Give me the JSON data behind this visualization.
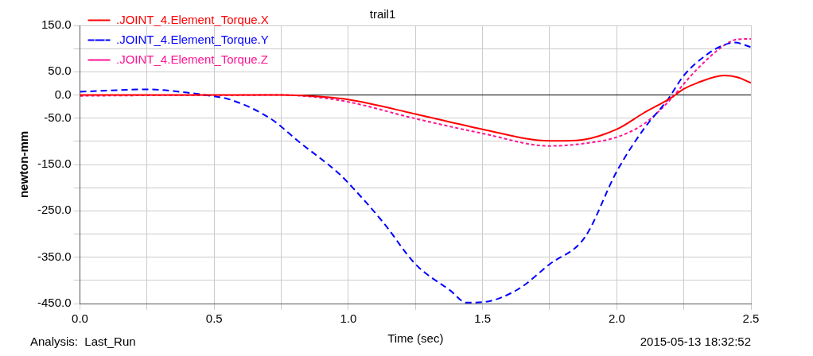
{
  "chart_data": {
    "type": "line",
    "title": "trail1",
    "xlabel": "Time (sec)",
    "ylabel": "newton-mm",
    "annotations": [
      "Analysis:  Last_Run",
      "2015-05-13 18:32:52"
    ],
    "xlim": [
      0,
      2.5
    ],
    "xticks": [
      {
        "value": 0,
        "label": "0.0"
      },
      {
        "value": 0.25,
        "label": null
      },
      {
        "value": 0.5,
        "label": "0.5"
      },
      {
        "value": 0.75,
        "label": null
      },
      {
        "value": 1,
        "label": "1.0"
      },
      {
        "value": 1.25,
        "label": null
      },
      {
        "value": 1.5,
        "label": "1.5"
      },
      {
        "value": 1.75,
        "label": null
      },
      {
        "value": 2,
        "label": "2.0"
      },
      {
        "value": 2.25,
        "label": null
      },
      {
        "value": 2.5,
        "label": "2.5"
      }
    ],
    "ylim": [
      -450,
      150
    ],
    "yticks": [
      {
        "value": -450,
        "label": "-450.0"
      },
      {
        "value": -400,
        "label": null
      },
      {
        "value": -350,
        "label": "-350.0"
      },
      {
        "value": -300,
        "label": null
      },
      {
        "value": -250,
        "label": "-250.0"
      },
      {
        "value": -200,
        "label": null
      },
      {
        "value": -150,
        "label": "-150.0"
      },
      {
        "value": -100,
        "label": null
      },
      {
        "value": -50,
        "label": "-50.0"
      },
      {
        "value": 0,
        "label": "0.0"
      },
      {
        "value": 50,
        "label": "50.0"
      },
      {
        "value": 100,
        "label": null
      },
      {
        "value": 150,
        "label": "150.0"
      }
    ],
    "grid": true,
    "legend": "top left",
    "marker": "none",
    "ref_lines": [
      {
        "axis": "y",
        "value": 0,
        "color": "#000000"
      }
    ],
    "series": [
      {
        "name": ".JOINT_4.Element_Torque.X",
        "color": "#ff0000",
        "line_style": "solid",
        "x": [
          0,
          0.25,
          0.5,
          0.75,
          0.9,
          1.0,
          1.25,
          1.5,
          1.75,
          1.85,
          2.0,
          2.1,
          2.2,
          2.25,
          2.3,
          2.4,
          2.45,
          2.5
        ],
        "values": [
          0,
          0,
          0,
          0,
          -4,
          -10,
          -41,
          -74,
          -99,
          -98,
          -74,
          -39,
          -7,
          13,
          26,
          42,
          38,
          26
        ]
      },
      {
        "name": ".JOINT_4.Element_Torque.Y",
        "color": "#0000ff",
        "line_style": "dashed",
        "x": [
          0,
          0.25,
          0.4,
          0.5,
          0.56,
          0.71,
          0.82,
          0.96,
          1.0,
          1.13,
          1.25,
          1.38,
          1.44,
          1.5,
          1.63,
          1.75,
          1.88,
          2.0,
          2.1,
          2.19,
          2.25,
          2.34,
          2.4,
          2.44,
          2.5
        ],
        "values": [
          7,
          12,
          5,
          -3,
          -10,
          -51,
          -103,
          -167,
          -190,
          -275,
          -365,
          -422,
          -448,
          -447,
          -420,
          -365,
          -308,
          -165,
          -74,
          -10,
          42,
          89,
          108,
          113,
          103
        ]
      },
      {
        "name": ".JOINT_4.Element_Torque.Z",
        "color": "#ff1493",
        "line_style": "dotted",
        "x": [
          0,
          0.25,
          0.5,
          0.75,
          0.9,
          1.0,
          1.25,
          1.5,
          1.75,
          1.9,
          2.0,
          2.1,
          2.2,
          2.25,
          2.3,
          2.4,
          2.45,
          2.5
        ],
        "values": [
          -2,
          -1,
          -1,
          0,
          -6,
          -15,
          -51,
          -83,
          -110,
          -103,
          -91,
          -63,
          -10,
          24,
          56,
          107,
          120,
          121
        ]
      }
    ]
  }
}
